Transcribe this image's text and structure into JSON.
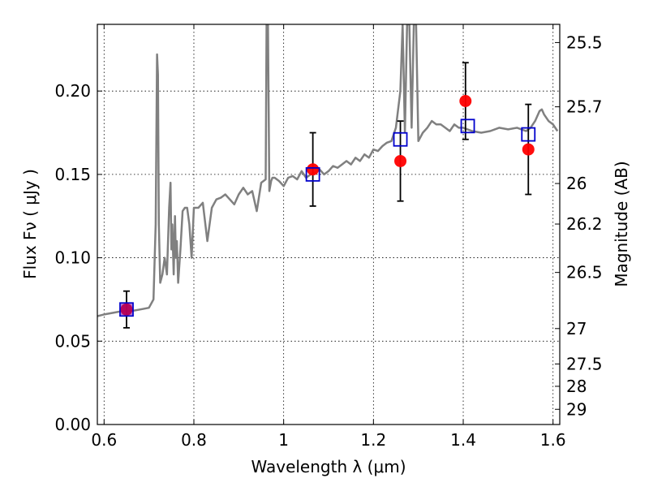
{
  "chart_data": {
    "type": "scatter",
    "xlabel": "Wavelength  λ (μm)",
    "ylabel": "Flux  Fν  ( μJy )",
    "y2label": "Magnitude (AB)",
    "xlim": [
      0.585,
      1.615
    ],
    "ylim": [
      0.0,
      0.24
    ],
    "grid": true,
    "grid_style": "dotted",
    "x_ticks": [
      {
        "value": 0.6,
        "label": "0.6"
      },
      {
        "value": 0.8,
        "label": "0.8"
      },
      {
        "value": 1.0,
        "label": "1"
      },
      {
        "value": 1.2,
        "label": "1.2"
      },
      {
        "value": 1.4,
        "label": "1.4"
      },
      {
        "value": 1.6,
        "label": "1.6"
      }
    ],
    "y_ticks": [
      {
        "value": 0.0,
        "label": "0.00"
      },
      {
        "value": 0.05,
        "label": "0.05"
      },
      {
        "value": 0.1,
        "label": "0.10"
      },
      {
        "value": 0.15,
        "label": "0.15"
      },
      {
        "value": 0.2,
        "label": "0.20"
      }
    ],
    "y2_ticks": [
      {
        "value": 25.5,
        "label": "25.5"
      },
      {
        "value": 25.7,
        "label": "25.7"
      },
      {
        "value": 26.0,
        "label": "26"
      },
      {
        "value": 26.2,
        "label": "26.2"
      },
      {
        "value": 26.5,
        "label": "26.5"
      },
      {
        "value": 27.0,
        "label": "27"
      },
      {
        "value": 27.5,
        "label": "27.5"
      },
      {
        "value": 28.0,
        "label": "28"
      },
      {
        "value": 29.0,
        "label": "29"
      }
    ],
    "series": [
      {
        "kind": "line",
        "color": "#808080",
        "x": [
          0.585,
          0.6,
          0.62,
          0.64,
          0.66,
          0.68,
          0.7,
          0.71,
          0.715,
          0.718,
          0.72,
          0.722,
          0.725,
          0.73,
          0.735,
          0.74,
          0.745,
          0.748,
          0.75,
          0.752,
          0.755,
          0.758,
          0.76,
          0.762,
          0.765,
          0.77,
          0.775,
          0.78,
          0.785,
          0.79,
          0.795,
          0.8,
          0.81,
          0.82,
          0.83,
          0.84,
          0.85,
          0.86,
          0.87,
          0.88,
          0.89,
          0.9,
          0.91,
          0.92,
          0.93,
          0.94,
          0.95,
          0.96,
          0.962,
          0.965,
          0.968,
          0.972,
          0.975,
          0.98,
          0.99,
          1.0,
          1.01,
          1.02,
          1.03,
          1.04,
          1.05,
          1.06,
          1.07,
          1.08,
          1.09,
          1.1,
          1.11,
          1.12,
          1.13,
          1.14,
          1.15,
          1.16,
          1.17,
          1.18,
          1.19,
          1.2,
          1.21,
          1.22,
          1.23,
          1.24,
          1.25,
          1.26,
          1.265,
          1.27,
          1.275,
          1.28,
          1.285,
          1.29,
          1.295,
          1.3,
          1.31,
          1.32,
          1.33,
          1.34,
          1.35,
          1.36,
          1.37,
          1.38,
          1.39,
          1.4,
          1.42,
          1.44,
          1.46,
          1.48,
          1.5,
          1.52,
          1.54,
          1.55,
          1.56,
          1.57,
          1.575,
          1.58,
          1.59,
          1.6,
          1.61
        ],
        "y": [
          0.065,
          0.066,
          0.067,
          0.068,
          0.068,
          0.069,
          0.07,
          0.075,
          0.12,
          0.222,
          0.21,
          0.12,
          0.085,
          0.09,
          0.1,
          0.09,
          0.13,
          0.145,
          0.105,
          0.12,
          0.09,
          0.125,
          0.1,
          0.11,
          0.085,
          0.105,
          0.128,
          0.13,
          0.13,
          0.12,
          0.1,
          0.13,
          0.13,
          0.133,
          0.11,
          0.13,
          0.135,
          0.136,
          0.138,
          0.135,
          0.132,
          0.138,
          0.142,
          0.138,
          0.14,
          0.128,
          0.145,
          0.147,
          0.24,
          0.24,
          0.14,
          0.146,
          0.148,
          0.148,
          0.146,
          0.143,
          0.148,
          0.149,
          0.147,
          0.152,
          0.148,
          0.15,
          0.151,
          0.153,
          0.15,
          0.152,
          0.155,
          0.154,
          0.156,
          0.158,
          0.156,
          0.16,
          0.158,
          0.162,
          0.16,
          0.165,
          0.164,
          0.167,
          0.169,
          0.17,
          0.178,
          0.2,
          0.24,
          0.175,
          0.24,
          0.24,
          0.178,
          0.24,
          0.24,
          0.17,
          0.175,
          0.178,
          0.182,
          0.18,
          0.18,
          0.178,
          0.176,
          0.18,
          0.178,
          0.178,
          0.176,
          0.175,
          0.176,
          0.178,
          0.177,
          0.178,
          0.176,
          0.178,
          0.182,
          0.188,
          0.189,
          0.186,
          0.182,
          0.18,
          0.176
        ]
      },
      {
        "kind": "points",
        "marker": "circle",
        "color": "#ff0000",
        "x": [
          0.65,
          1.065,
          1.26,
          1.405,
          1.545
        ],
        "y": [
          0.069,
          0.153,
          0.158,
          0.194,
          0.165
        ],
        "yerr": [
          0.011,
          0.022,
          0.024,
          0.023,
          0.027
        ]
      },
      {
        "kind": "points",
        "marker": "square",
        "color": "#0000cc",
        "x": [
          0.65,
          1.065,
          1.26,
          1.41,
          1.545
        ],
        "y": [
          0.069,
          0.15,
          0.171,
          0.179,
          0.174
        ]
      }
    ]
  }
}
